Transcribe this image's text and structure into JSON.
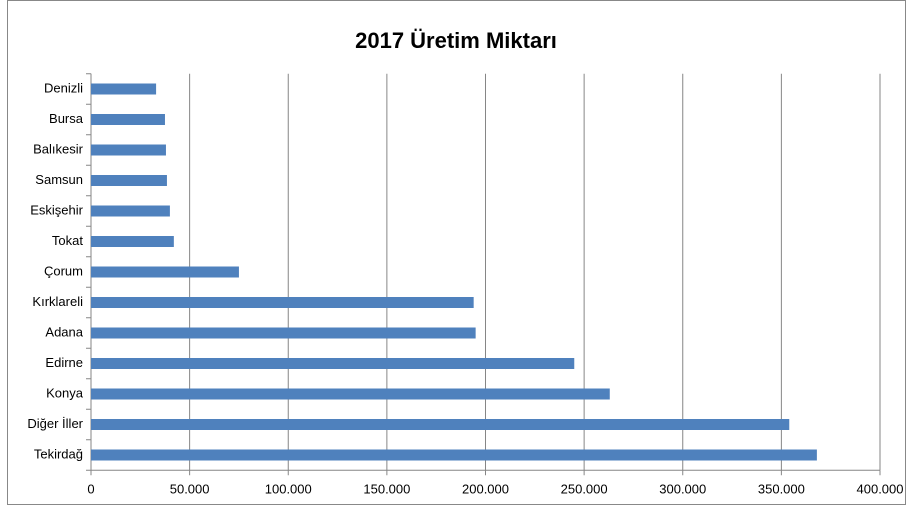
{
  "chart_data": {
    "type": "barh",
    "title": "2017 Üretim Miktarı",
    "categories": [
      "Denizli",
      "Bursa",
      "Balıkesir",
      "Samsun",
      "Eskişehir",
      "Tokat",
      "Çorum",
      "Kırklareli",
      "Adana",
      "Edirne",
      "Konya",
      "Diğer İller",
      "Tekirdağ"
    ],
    "values": [
      33000,
      37500,
      38000,
      38500,
      40000,
      42000,
      75000,
      194000,
      195000,
      245000,
      263000,
      354000,
      368000
    ],
    "color": "#4f81bd",
    "xlim": [
      0,
      400000
    ],
    "xticks": [
      0,
      {
        "value": 50000,
        "label": "50.000"
      },
      {
        "value": 100000,
        "label": "100.000"
      },
      {
        "value": 150000,
        "label": "150.000"
      },
      {
        "value": 200000,
        "label": "200.000"
      },
      {
        "value": 250000,
        "label": "250.000"
      },
      {
        "value": 300000,
        "label": "300.000"
      },
      {
        "value": 350000,
        "label": "350.000"
      },
      {
        "value": 400000,
        "label": "400.000"
      }
    ],
    "grid": true
  }
}
